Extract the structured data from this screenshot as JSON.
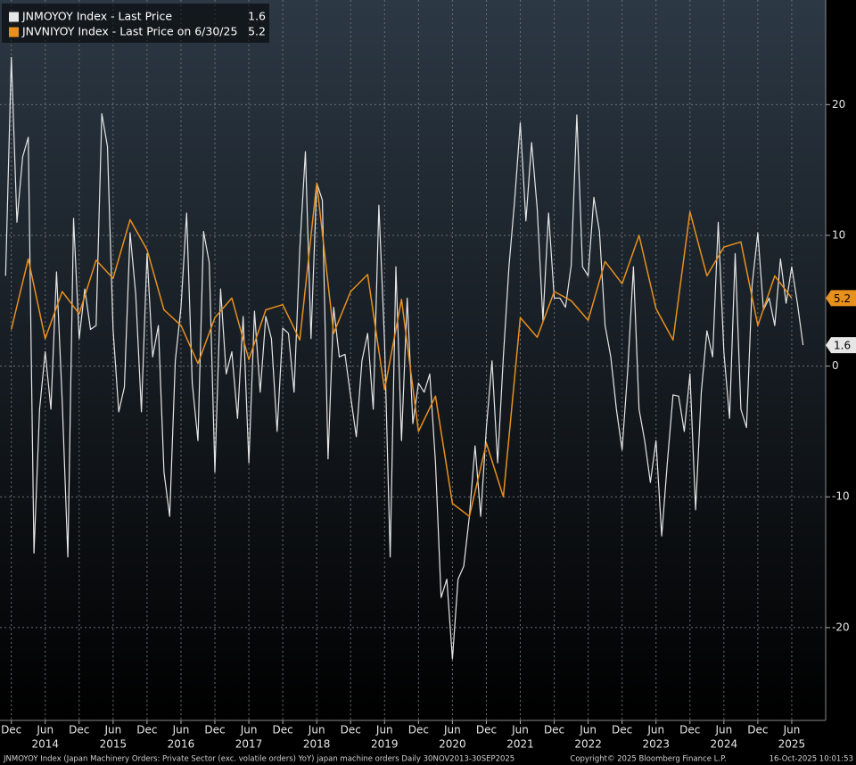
{
  "chart_data": {
    "type": "line",
    "series": [
      {
        "name": "JNMOYOY Index - Last Price",
        "color": "#e6e6e6",
        "x": [
          "2013-11",
          "2013-12",
          "2014-01",
          "2014-02",
          "2014-03",
          "2014-04",
          "2014-05",
          "2014-06",
          "2014-07",
          "2014-08",
          "2014-09",
          "2014-10",
          "2014-11",
          "2014-12",
          "2015-01",
          "2015-02",
          "2015-03",
          "2015-04",
          "2015-05",
          "2015-06",
          "2015-07",
          "2015-08",
          "2015-09",
          "2015-10",
          "2015-11",
          "2015-12",
          "2016-01",
          "2016-02",
          "2016-03",
          "2016-04",
          "2016-05",
          "2016-06",
          "2016-07",
          "2016-08",
          "2016-09",
          "2016-10",
          "2016-11",
          "2016-12",
          "2017-01",
          "2017-02",
          "2017-03",
          "2017-04",
          "2017-05",
          "2017-06",
          "2017-07",
          "2017-08",
          "2017-09",
          "2017-10",
          "2017-11",
          "2017-12",
          "2018-01",
          "2018-02",
          "2018-03",
          "2018-04",
          "2018-05",
          "2018-06",
          "2018-07",
          "2018-08",
          "2018-09",
          "2018-10",
          "2018-11",
          "2018-12",
          "2019-01",
          "2019-02",
          "2019-03",
          "2019-04",
          "2019-05",
          "2019-06",
          "2019-07",
          "2019-08",
          "2019-09",
          "2019-10",
          "2019-11",
          "2019-12",
          "2020-01",
          "2020-02",
          "2020-03",
          "2020-04",
          "2020-05",
          "2020-06",
          "2020-07",
          "2020-08",
          "2020-09",
          "2020-10",
          "2020-11",
          "2020-12",
          "2021-01",
          "2021-02",
          "2021-03",
          "2021-04",
          "2021-05",
          "2021-06",
          "2021-07",
          "2021-08",
          "2021-09",
          "2021-10",
          "2021-11",
          "2021-12",
          "2022-01",
          "2022-02",
          "2022-03",
          "2022-04",
          "2022-05",
          "2022-06",
          "2022-07",
          "2022-08",
          "2022-09",
          "2022-10",
          "2022-11",
          "2022-12",
          "2023-01",
          "2023-02",
          "2023-03",
          "2023-04",
          "2023-05",
          "2023-06",
          "2023-07",
          "2023-08",
          "2023-09",
          "2023-10",
          "2023-11",
          "2023-12",
          "2024-01",
          "2024-02",
          "2024-03",
          "2024-04",
          "2024-05",
          "2024-06",
          "2024-07",
          "2024-08",
          "2024-09",
          "2024-10",
          "2024-11",
          "2024-12",
          "2025-01",
          "2025-02",
          "2025-03",
          "2025-04",
          "2025-05",
          "2025-06",
          "2025-07",
          "2025-08"
        ],
        "values": [
          6.9,
          23.6,
          11,
          16,
          17.5,
          -14.3,
          -3.3,
          1.1,
          -3.3,
          7.2,
          -2.7,
          -14.6,
          11.3,
          2.1,
          5.9,
          2.8,
          3.1,
          19.3,
          16.8,
          2.8,
          -3.5,
          -1.6,
          10.2,
          5.5,
          -3.5,
          8.6,
          0.7,
          3.1,
          -8.1,
          -11.5,
          0.4,
          4.5,
          11.7,
          -1.3,
          -5.7,
          10.3,
          7.9,
          -8.1,
          5.9,
          -0.6,
          1.1,
          -4,
          3.8,
          -7.4,
          4.2,
          -2,
          3.8,
          2.1,
          -5,
          2.9,
          2.5,
          -2,
          8.9,
          16.4,
          2.1,
          14,
          12.7,
          -7.1,
          4.5,
          0.7,
          0.9,
          -2.3,
          -5.4,
          0.4,
          2.5,
          -3.3,
          12.3,
          1.8,
          -14.6,
          7.6,
          -5.7,
          5.2,
          -4.4,
          -1.3,
          -2,
          -0.6,
          -7.4,
          -17.7,
          -16.3,
          -22.4,
          -16.3,
          -15.3,
          -11.5,
          -6.1,
          -11.5,
          -4.7,
          0.4,
          -7.4,
          0.7,
          7.6,
          12.7,
          18.6,
          11.1,
          17.1,
          12,
          3.5,
          11.7,
          5.2,
          5.2,
          4.5,
          7.7,
          19.2,
          7.6,
          6.9,
          12.9,
          10.3,
          3.1,
          0.7,
          -3.3,
          -6.4,
          -0.3,
          7.6,
          -3.3,
          -5.7,
          -8.9,
          -5.7,
          -13,
          -7.4,
          -2.2,
          -2.3,
          -5,
          -0.6,
          -11,
          -2,
          2.7,
          0.7,
          11,
          1.1,
          -4,
          8.6,
          -3.3,
          -4.7,
          6.2,
          10.2,
          4.3,
          5.2,
          3.1,
          8.2,
          4.8,
          7.6,
          4.8,
          1.6
        ]
      },
      {
        "name": "JNVNIYOY Index - Last Price on 6/30/25",
        "color": "#e8901d",
        "x": [
          "2013-12",
          "2014-03",
          "2014-06",
          "2014-09",
          "2014-12",
          "2015-03",
          "2015-06",
          "2015-09",
          "2015-12",
          "2016-03",
          "2016-06",
          "2016-09",
          "2016-12",
          "2017-03",
          "2017-06",
          "2017-09",
          "2017-12",
          "2018-03",
          "2018-06",
          "2018-09",
          "2018-12",
          "2019-03",
          "2019-06",
          "2019-09",
          "2019-12",
          "2020-03",
          "2020-06",
          "2020-09",
          "2020-12",
          "2021-03",
          "2021-06",
          "2021-09",
          "2021-12",
          "2022-03",
          "2022-06",
          "2022-09",
          "2022-12",
          "2023-03",
          "2023-06",
          "2023-09",
          "2023-12",
          "2024-03",
          "2024-06",
          "2024-09",
          "2024-12",
          "2025-03",
          "2025-06"
        ],
        "values": [
          2.8,
          8.2,
          2.1,
          5.7,
          4,
          8.1,
          6.7,
          11.2,
          8.9,
          4.3,
          3.1,
          0.2,
          3.7,
          5.2,
          0.5,
          4.3,
          4.7,
          2,
          14,
          2.5,
          5.7,
          7,
          -1.8,
          5.1,
          -5,
          -2.3,
          -10.5,
          -11.5,
          -5.9,
          -10,
          3.7,
          2.2,
          5.7,
          5,
          3.5,
          8,
          6.3,
          10,
          4.4,
          2,
          11.8,
          6.9,
          9.1,
          9.5,
          3.1,
          6.9,
          5.2
        ]
      }
    ],
    "xlim": [
      "2013-10",
      "2025-12"
    ],
    "xticks": [
      {
        "value": "2013-12",
        "label": "Dec"
      },
      {
        "value": "2014-06",
        "label": "Jun"
      },
      {
        "value": "2014-12",
        "label": "Dec"
      },
      {
        "value": "2015-06",
        "label": "Jun"
      },
      {
        "value": "2015-12",
        "label": "Dec"
      },
      {
        "value": "2016-06",
        "label": "Jun"
      },
      {
        "value": "2016-12",
        "label": "Dec"
      },
      {
        "value": "2017-06",
        "label": "Jun"
      },
      {
        "value": "2017-12",
        "label": "Dec"
      },
      {
        "value": "2018-06",
        "label": "Jun"
      },
      {
        "value": "2018-12",
        "label": "Dec"
      },
      {
        "value": "2019-06",
        "label": "Jun"
      },
      {
        "value": "2019-12",
        "label": "Dec"
      },
      {
        "value": "2020-06",
        "label": "Jun"
      },
      {
        "value": "2020-12",
        "label": "Dec"
      },
      {
        "value": "2021-06",
        "label": "Jun"
      },
      {
        "value": "2021-12",
        "label": "Dec"
      },
      {
        "value": "2022-06",
        "label": "Jun"
      },
      {
        "value": "2022-12",
        "label": "Dec"
      },
      {
        "value": "2023-06",
        "label": "Jun"
      },
      {
        "value": "2023-12",
        "label": "Dec"
      },
      {
        "value": "2024-06",
        "label": "Jun"
      },
      {
        "value": "2024-12",
        "label": "Dec"
      },
      {
        "value": "2025-06",
        "label": "Jun"
      }
    ],
    "year_labels": [
      {
        "value": "2014-06",
        "label": "2014"
      },
      {
        "value": "2015-06",
        "label": "2015"
      },
      {
        "value": "2016-06",
        "label": "2016"
      },
      {
        "value": "2017-06",
        "label": "2017"
      },
      {
        "value": "2018-06",
        "label": "2018"
      },
      {
        "value": "2019-06",
        "label": "2019"
      },
      {
        "value": "2020-06",
        "label": "2020"
      },
      {
        "value": "2021-06",
        "label": "2021"
      },
      {
        "value": "2022-06",
        "label": "2022"
      },
      {
        "value": "2023-06",
        "label": "2023"
      },
      {
        "value": "2024-06",
        "label": "2024"
      },
      {
        "value": "2025-06",
        "label": "2025"
      }
    ],
    "ylim": [
      -27.1,
      28
    ],
    "yticks": [
      -20,
      -10,
      0,
      10,
      20
    ],
    "grid": true,
    "legend": "top-left",
    "footer": {
      "description": "JNMOYOY Index (Japan Machinery Orders: Private Sector (exc. volatile orders) YoY) japan machine orders Daily 30NOV2013-30SEP2025",
      "copyright": "Copyright© 2025 Bloomberg Finance L.P.",
      "timestamp": "16-Oct-2025 10:01:53"
    }
  }
}
